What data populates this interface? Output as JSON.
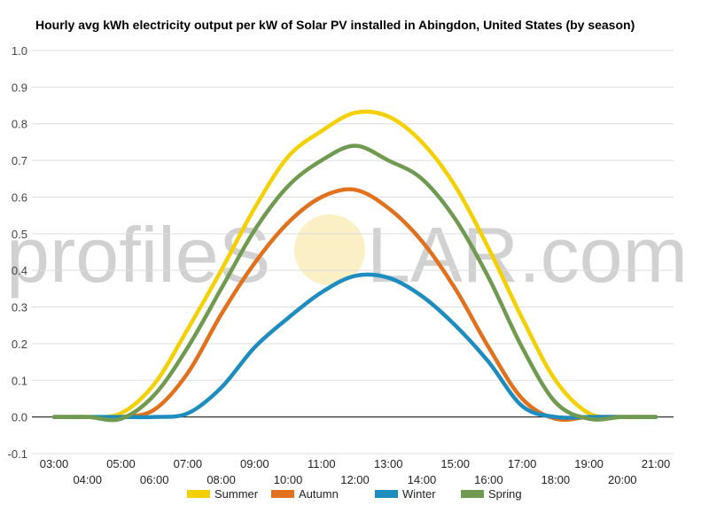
{
  "chart_data": {
    "type": "line",
    "title": "Hourly avg kWh electricity output per kW of Solar PV installed in Abingdon, United States (by season)",
    "xlabel": "",
    "ylabel": "",
    "ylim": [
      -0.1,
      1.0
    ],
    "yticks": [
      "-0.1",
      "0.0",
      "0.1",
      "0.2",
      "0.3",
      "0.4",
      "0.5",
      "0.6",
      "0.7",
      "0.8",
      "0.9",
      "1.0"
    ],
    "categories": [
      "03:00",
      "04:00",
      "05:00",
      "06:00",
      "07:00",
      "08:00",
      "09:00",
      "10:00",
      "11:00",
      "12:00",
      "13:00",
      "14:00",
      "15:00",
      "16:00",
      "17:00",
      "18:00",
      "19:00",
      "20:00",
      "21:00"
    ],
    "grid": true,
    "legend_position": "bottom",
    "series": [
      {
        "name": "Summer",
        "color": "#f5d000",
        "values": [
          0,
          0,
          0.01,
          0.09,
          0.24,
          0.4,
          0.57,
          0.71,
          0.78,
          0.83,
          0.82,
          0.75,
          0.63,
          0.46,
          0.27,
          0.1,
          0.01,
          0,
          0
        ]
      },
      {
        "name": "Autumn",
        "color": "#e2711d",
        "values": [
          0,
          0,
          0,
          0.02,
          0.12,
          0.28,
          0.42,
          0.53,
          0.6,
          0.62,
          0.57,
          0.48,
          0.35,
          0.19,
          0.05,
          -0.005,
          0,
          0,
          0
        ]
      },
      {
        "name": "Winter",
        "color": "#1d8dbf",
        "values": [
          0,
          0,
          0,
          0,
          0.01,
          0.08,
          0.19,
          0.27,
          0.34,
          0.385,
          0.38,
          0.33,
          0.25,
          0.15,
          0.03,
          0,
          0,
          0,
          0
        ]
      },
      {
        "name": "Spring",
        "color": "#6f9a4f",
        "values": [
          0,
          0,
          -0.005,
          0.06,
          0.19,
          0.35,
          0.51,
          0.63,
          0.7,
          0.74,
          0.7,
          0.65,
          0.54,
          0.38,
          0.19,
          0.04,
          -0.005,
          0,
          0
        ]
      }
    ]
  },
  "watermark": {
    "text_left": "profileS",
    "text_right": "LAR.com"
  }
}
